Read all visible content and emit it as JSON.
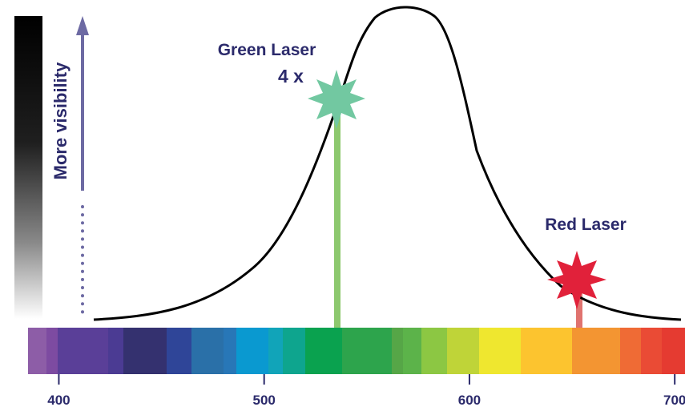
{
  "labels": {
    "visibility": "More visibility",
    "green_laser": "Green Laser",
    "green_multiplier": "4 x",
    "red_laser": "Red Laser"
  },
  "axis": {
    "ticks": [
      {
        "value": 400,
        "label": "400"
      },
      {
        "value": 500,
        "label": "500"
      },
      {
        "value": 600,
        "label": "600"
      },
      {
        "value": 700,
        "label": "700"
      }
    ],
    "range": [
      385,
      705
    ]
  },
  "curve": {
    "peak_wavelength": 555
  },
  "lasers": [
    {
      "name": "green",
      "wavelength": 532
    },
    {
      "name": "red",
      "wavelength": 650
    }
  ],
  "colors": {
    "text": "#2b2a6b",
    "arrow": "#6d6aa3",
    "curve": "#000000",
    "green_star": "#72c8a1",
    "green_beam": "#8dc86e",
    "red_star": "#e1213a",
    "red_beam": "#e0736f",
    "visibility_bar_top": "#000000",
    "visibility_bar_bottom": "#ffffff"
  }
}
